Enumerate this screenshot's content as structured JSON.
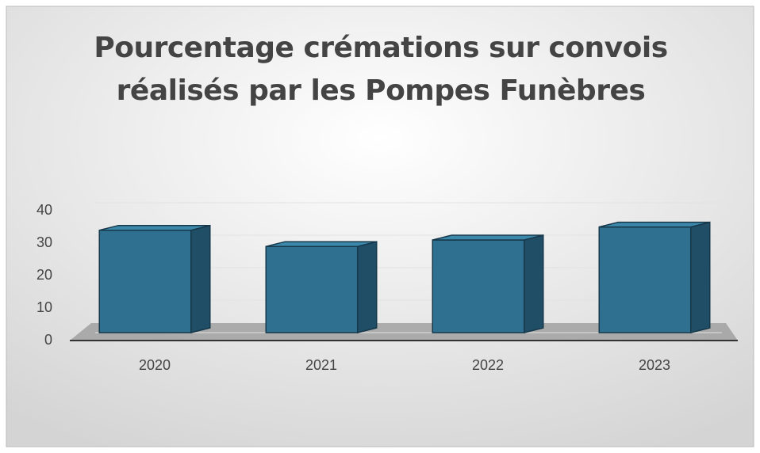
{
  "chart_data": {
    "type": "bar3d",
    "title": "Pourcentage crémations sur convois réalisés par les Pompes Funèbres",
    "categories": [
      "2020",
      "2021",
      "2022",
      "2023"
    ],
    "values": [
      33,
      28,
      30,
      34
    ],
    "color": "#2f6f8f",
    "ylim": [
      0,
      40
    ],
    "yticks": [
      0,
      10,
      20,
      30,
      40
    ],
    "grid": true
  }
}
